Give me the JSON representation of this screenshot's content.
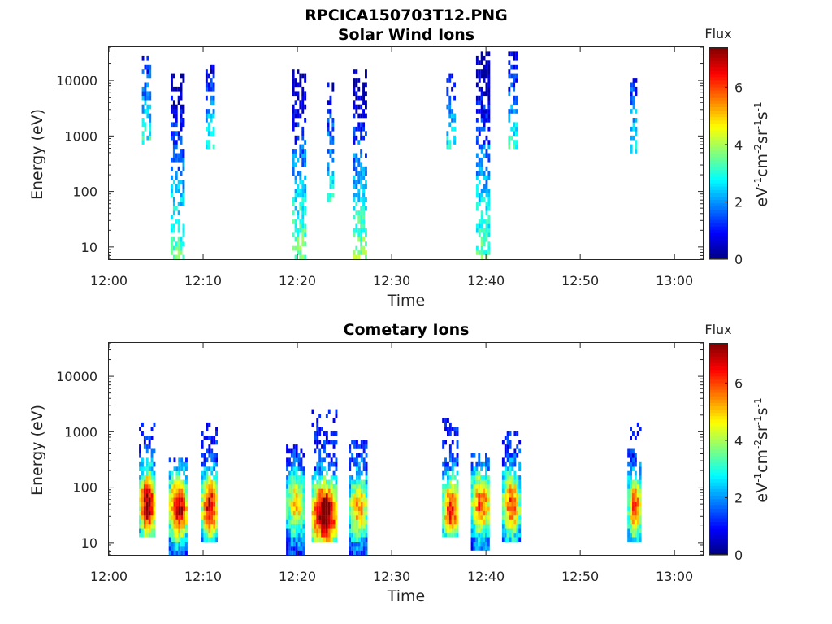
{
  "figure_title": "RPCICA150703T12.PNG",
  "chart_data": [
    {
      "type": "heatmap",
      "title": "Solar Wind Ions",
      "xlabel": "Time",
      "ylabel": "Energy (eV)",
      "x_ticks": [
        "12:00",
        "12:10",
        "12:20",
        "12:30",
        "12:40",
        "12:50",
        "13:00"
      ],
      "xlim_minutes": [
        0,
        63
      ],
      "y_scale": "log",
      "ylim": [
        6,
        40000
      ],
      "y_ticks": [
        10,
        100,
        1000,
        10000
      ],
      "y_tick_labels": [
        "10",
        "100",
        "1000",
        "10000"
      ],
      "colorbar": {
        "title": "Flux",
        "label": "eV-1cm-2sr-1s-1",
        "range": [
          0,
          7.4
        ],
        "ticks": [
          "0",
          "2",
          "4",
          "6"
        ],
        "colormap": "jet"
      },
      "bursts": [
        {
          "t_min": 3.9,
          "width_min": 0.8,
          "emin_ev": 700,
          "emax_ev": 25000,
          "flux_range": [
            1,
            3
          ]
        },
        {
          "t_min": 7.2,
          "width_min": 1.3,
          "emin_ev": 6,
          "emax_ev": 13000,
          "flux_range": [
            0,
            3.5
          ]
        },
        {
          "t_min": 10.7,
          "width_min": 0.9,
          "emin_ev": 600,
          "emax_ev": 18000,
          "flux_range": [
            0.5,
            3
          ]
        },
        {
          "t_min": 20.2,
          "width_min": 1.5,
          "emin_ev": 6,
          "emax_ev": 15000,
          "flux_range": [
            0,
            3.8
          ]
        },
        {
          "t_min": 23.5,
          "width_min": 0.7,
          "emin_ev": 60,
          "emax_ev": 9000,
          "flux_range": [
            0.5,
            3
          ]
        },
        {
          "t_min": 26.6,
          "width_min": 1.4,
          "emin_ev": 6,
          "emax_ev": 14000,
          "flux_range": [
            0,
            3.8
          ]
        },
        {
          "t_min": 36.2,
          "width_min": 0.8,
          "emin_ev": 600,
          "emax_ev": 12000,
          "flux_range": [
            0.5,
            3
          ]
        },
        {
          "t_min": 39.6,
          "width_min": 1.3,
          "emin_ev": 6,
          "emax_ev": 30000,
          "flux_range": [
            0,
            3.5
          ]
        },
        {
          "t_min": 42.8,
          "width_min": 0.9,
          "emin_ev": 600,
          "emax_ev": 30000,
          "flux_range": [
            0.5,
            3
          ]
        },
        {
          "t_min": 55.6,
          "width_min": 0.6,
          "emin_ev": 500,
          "emax_ev": 12000,
          "flux_range": [
            1,
            3
          ]
        }
      ]
    },
    {
      "type": "heatmap",
      "title": "Cometary Ions",
      "xlabel": "Time",
      "ylabel": "Energy (eV)",
      "x_ticks": [
        "12:00",
        "12:10",
        "12:20",
        "12:30",
        "12:40",
        "12:50",
        "13:00"
      ],
      "xlim_minutes": [
        0,
        63
      ],
      "y_scale": "log",
      "ylim": [
        6,
        40000
      ],
      "y_ticks": [
        10,
        100,
        1000,
        10000
      ],
      "y_tick_labels": [
        "10",
        "100",
        "1000",
        "10000"
      ],
      "colorbar": {
        "title": "Flux",
        "label": "eV-1cm-2sr-1s-1",
        "range": [
          0,
          7.4
        ],
        "ticks": [
          "0",
          "2",
          "4",
          "6"
        ],
        "colormap": "jet"
      },
      "bursts": [
        {
          "t_min": 4.0,
          "width_min": 1.6,
          "emin_ev": 12,
          "emax_ev": 1300,
          "peak_energy_ev": 45,
          "peak_flux": 6.6
        },
        {
          "t_min": 7.3,
          "width_min": 1.9,
          "emin_ev": 6,
          "emax_ev": 300,
          "peak_energy_ev": 40,
          "peak_flux": 6.3
        },
        {
          "t_min": 10.6,
          "width_min": 1.6,
          "emin_ev": 10,
          "emax_ev": 1300,
          "peak_energy_ev": 40,
          "peak_flux": 6.2
        },
        {
          "t_min": 19.8,
          "width_min": 2.0,
          "emin_ev": 6,
          "emax_ev": 500,
          "peak_energy_ev": 45,
          "peak_flux": 4.2
        },
        {
          "t_min": 22.8,
          "width_min": 2.6,
          "emin_ev": 10,
          "emax_ev": 2500,
          "peak_energy_ev": 30,
          "peak_flux": 7.2
        },
        {
          "t_min": 26.4,
          "width_min": 1.9,
          "emin_ev": 6,
          "emax_ev": 600,
          "peak_energy_ev": 40,
          "peak_flux": 4.6
        },
        {
          "t_min": 36.2,
          "width_min": 1.7,
          "emin_ev": 12,
          "emax_ev": 1500,
          "peak_energy_ev": 35,
          "peak_flux": 5.6
        },
        {
          "t_min": 39.4,
          "width_min": 2.0,
          "emin_ev": 8,
          "emax_ev": 400,
          "peak_energy_ev": 45,
          "peak_flux": 5.2
        },
        {
          "t_min": 42.6,
          "width_min": 1.8,
          "emin_ev": 10,
          "emax_ev": 1000,
          "peak_energy_ev": 45,
          "peak_flux": 5.2
        },
        {
          "t_min": 55.7,
          "width_min": 1.4,
          "emin_ev": 10,
          "emax_ev": 1300,
          "peak_energy_ev": 40,
          "peak_flux": 5.2
        }
      ]
    }
  ]
}
